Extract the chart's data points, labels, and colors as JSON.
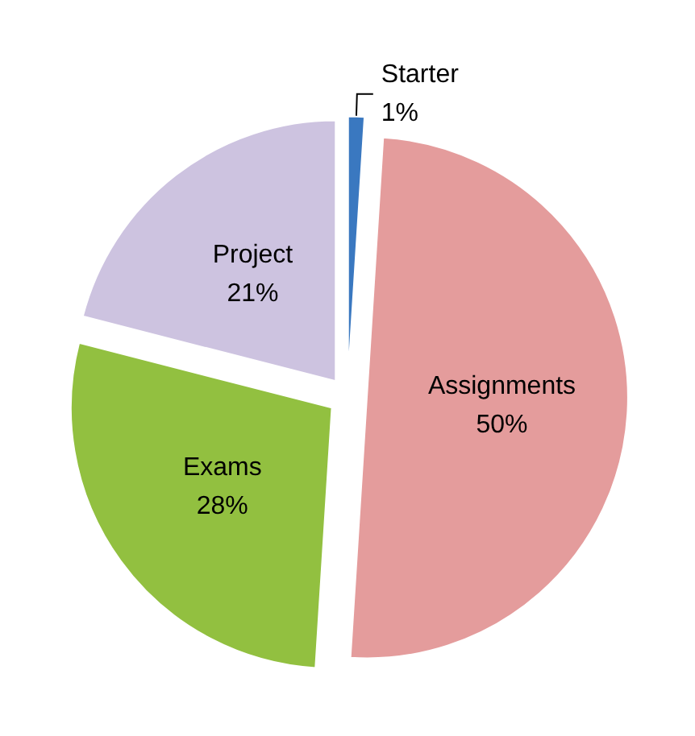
{
  "chart_data": {
    "type": "pie",
    "categories": [
      "Starter",
      "Assignments",
      "Exams",
      "Project"
    ],
    "values": [
      1,
      50,
      28,
      21
    ],
    "colors": [
      "#3a78c0",
      "#e49c9c",
      "#92c040",
      "#cdc3e0"
    ],
    "value_labels": [
      "1%",
      "50%",
      "28%",
      "21%"
    ]
  }
}
